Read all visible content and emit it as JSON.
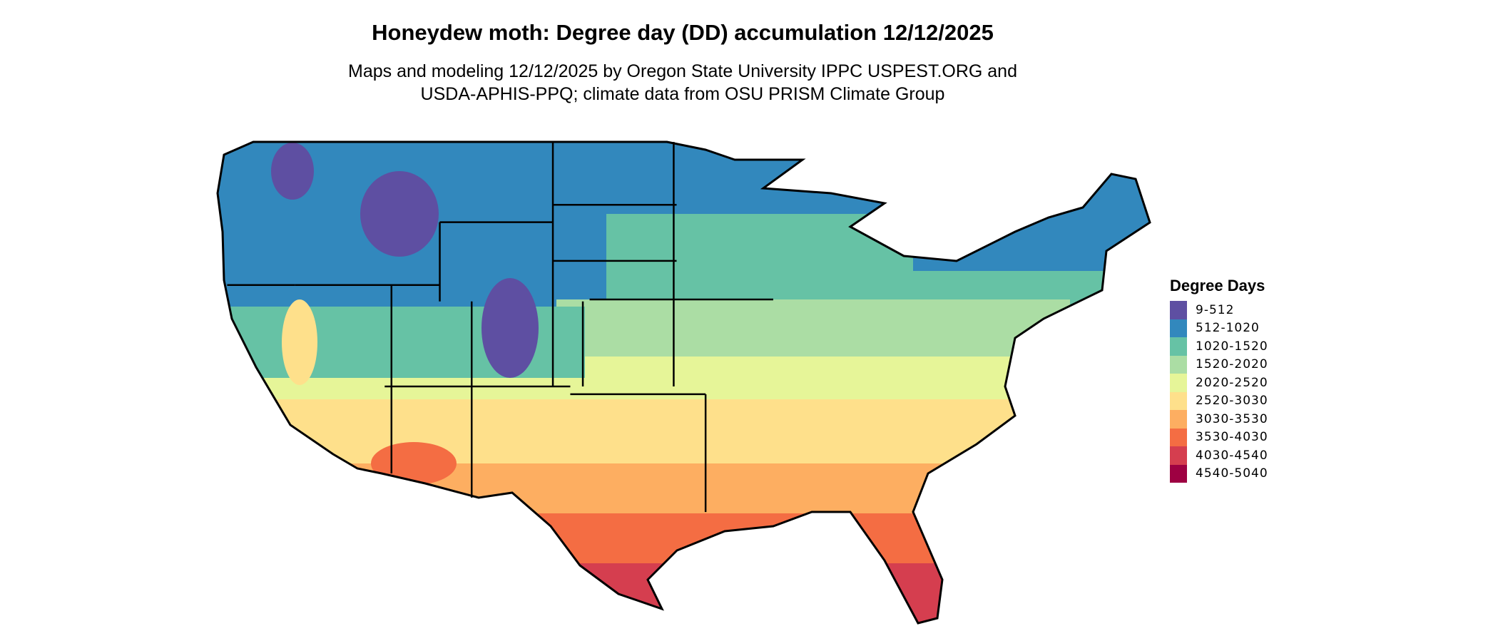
{
  "title": "Honeydew moth: Degree day (DD) accumulation 12/12/2025",
  "subtitle_line1": "Maps and modeling 12/12/2025 by Oregon State University IPPC USPEST.ORG and",
  "subtitle_line2": "USDA-APHIS-PPQ; climate data from OSU PRISM Climate Group",
  "legend": {
    "title": "Degree Days",
    "items": [
      {
        "label": "9-512",
        "color": "#5e4fa2"
      },
      {
        "label": "512-1020",
        "color": "#3288bd"
      },
      {
        "label": "1020-1520",
        "color": "#66c2a5"
      },
      {
        "label": "1520-2020",
        "color": "#abdda4"
      },
      {
        "label": "2020-2520",
        "color": "#e6f598"
      },
      {
        "label": "2520-3030",
        "color": "#fee08b"
      },
      {
        "label": "3030-3530",
        "color": "#fdae61"
      },
      {
        "label": "3530-4030",
        "color": "#f46d43"
      },
      {
        "label": "4030-4540",
        "color": "#d53e4f"
      },
      {
        "label": "4540-5040",
        "color": "#9e0142"
      }
    ]
  }
}
